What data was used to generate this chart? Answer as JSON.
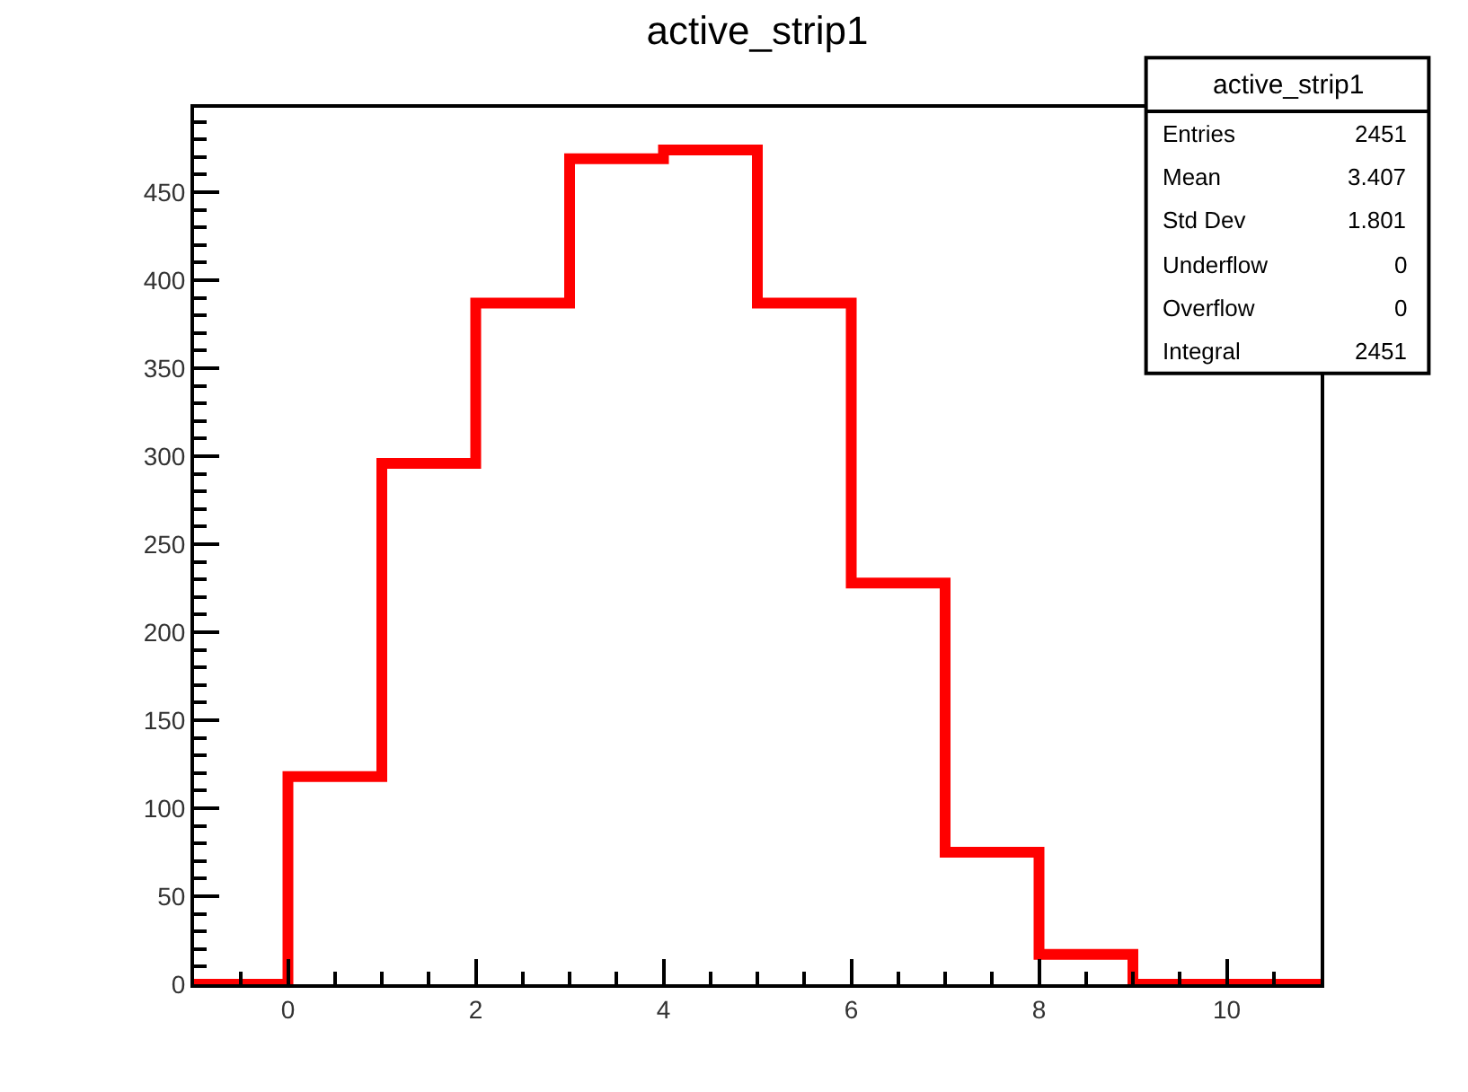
{
  "chart_data": {
    "type": "histogram",
    "title": "active_strip1",
    "bins": [
      -1,
      0,
      1,
      2,
      3,
      4,
      5,
      6,
      7,
      8,
      9,
      10,
      11
    ],
    "values": [
      0,
      118,
      296,
      387,
      469,
      474,
      387,
      228,
      75,
      17,
      0,
      0
    ],
    "color": "#ff0000",
    "xlim": [
      -1,
      11
    ],
    "xticks": [
      0,
      2,
      4,
      6,
      8,
      10
    ],
    "ylim": [
      0,
      498
    ],
    "yticks": [
      0,
      50,
      100,
      150,
      200,
      250,
      300,
      350,
      400,
      450
    ],
    "annotations": [
      "active_strip1",
      "Entries",
      "2451",
      "Mean",
      "3.407",
      "Std Dev",
      "1.801",
      "Underflow",
      "0",
      "Overflow",
      "0",
      "Integral",
      "2451"
    ]
  }
}
